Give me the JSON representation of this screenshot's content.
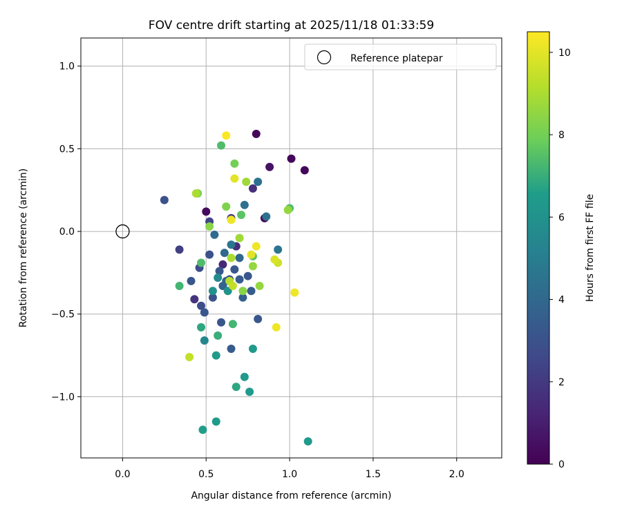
{
  "chart_data": {
    "type": "scatter",
    "title": "FOV centre drift starting at 2025/11/18 01:33:59",
    "xlabel": "Angular distance from reference (arcmin)",
    "ylabel": "Rotation from reference (arcmin)",
    "xlim": [
      -0.25,
      2.27
    ],
    "ylim": [
      -1.37,
      1.17
    ],
    "xticks": [
      0.0,
      0.5,
      1.0,
      1.5,
      2.0
    ],
    "xtick_labels": [
      "0.0",
      "0.5",
      "1.0",
      "1.5",
      "2.0"
    ],
    "yticks": [
      -1.0,
      -0.5,
      0.0,
      0.5,
      1.0
    ],
    "ytick_labels": [
      "−1.0",
      "−0.5",
      "0.0",
      "0.5",
      "1.0"
    ],
    "grid": true,
    "legend": {
      "position": "top-right",
      "entries": [
        "Reference platepar"
      ]
    },
    "reference_point": {
      "x": 0.0,
      "y": 0.0
    },
    "colorbar": {
      "label": "Hours from first FF file",
      "range": [
        0,
        10.5
      ],
      "ticks": [
        0,
        2,
        4,
        6,
        8,
        10
      ],
      "tick_labels": [
        "0",
        "2",
        "4",
        "6",
        "8",
        "10"
      ],
      "colormap": [
        "#440154",
        "#482777",
        "#3f4a8a",
        "#31678e",
        "#26838f",
        "#1f9d8a",
        "#6cce5a",
        "#b6de2b",
        "#fee825"
      ]
    },
    "points": [
      {
        "x": 0.8,
        "y": 0.59,
        "c": 0.2
      },
      {
        "x": 1.01,
        "y": 0.44,
        "c": 0.2
      },
      {
        "x": 1.09,
        "y": 0.37,
        "c": 0.2
      },
      {
        "x": 0.88,
        "y": 0.39,
        "c": 0.6
      },
      {
        "x": 0.5,
        "y": 0.12,
        "c": 0.3
      },
      {
        "x": 0.85,
        "y": 0.08,
        "c": 0.4
      },
      {
        "x": 0.78,
        "y": 0.26,
        "c": 1.6
      },
      {
        "x": 0.6,
        "y": -0.2,
        "c": 1.4
      },
      {
        "x": 0.68,
        "y": -0.09,
        "c": 1.5
      },
      {
        "x": 0.43,
        "y": -0.41,
        "c": 1.8
      },
      {
        "x": 0.34,
        "y": -0.11,
        "c": 2.2
      },
      {
        "x": 0.52,
        "y": 0.06,
        "c": 2.4
      },
      {
        "x": 0.65,
        "y": 0.08,
        "c": 2.0
      },
      {
        "x": 0.25,
        "y": 0.19,
        "c": 3.0
      },
      {
        "x": 0.46,
        "y": -0.22,
        "c": 2.8
      },
      {
        "x": 0.47,
        "y": -0.45,
        "c": 2.8
      },
      {
        "x": 0.49,
        "y": -0.49,
        "c": 3.2
      },
      {
        "x": 0.52,
        "y": -0.14,
        "c": 3.0
      },
      {
        "x": 0.41,
        "y": -0.3,
        "c": 3.2
      },
      {
        "x": 0.54,
        "y": -0.4,
        "c": 3.0
      },
      {
        "x": 0.58,
        "y": -0.24,
        "c": 3.2
      },
      {
        "x": 0.59,
        "y": -0.55,
        "c": 3.2
      },
      {
        "x": 0.65,
        "y": -0.71,
        "c": 3.4
      },
      {
        "x": 0.62,
        "y": -0.3,
        "c": 3.6
      },
      {
        "x": 0.64,
        "y": -0.29,
        "c": 3.0
      },
      {
        "x": 0.67,
        "y": -0.23,
        "c": 3.2
      },
      {
        "x": 0.7,
        "y": -0.29,
        "c": 3.4
      },
      {
        "x": 0.72,
        "y": -0.4,
        "c": 3.6
      },
      {
        "x": 0.75,
        "y": -0.27,
        "c": 3.2
      },
      {
        "x": 0.77,
        "y": -0.36,
        "c": 3.4
      },
      {
        "x": 0.81,
        "y": -0.53,
        "c": 3.2
      },
      {
        "x": 0.6,
        "y": -0.33,
        "c": 3.8
      },
      {
        "x": 0.7,
        "y": -0.16,
        "c": 4.0
      },
      {
        "x": 0.55,
        "y": -0.02,
        "c": 4.2
      },
      {
        "x": 0.61,
        "y": -0.13,
        "c": 4.0
      },
      {
        "x": 0.65,
        "y": -0.08,
        "c": 4.6
      },
      {
        "x": 0.73,
        "y": 0.16,
        "c": 4.4
      },
      {
        "x": 0.81,
        "y": 0.3,
        "c": 4.4
      },
      {
        "x": 0.86,
        "y": 0.09,
        "c": 4.4
      },
      {
        "x": 0.93,
        "y": -0.11,
        "c": 4.6
      },
      {
        "x": 0.49,
        "y": -0.66,
        "c": 5.4
      },
      {
        "x": 0.57,
        "y": -0.28,
        "c": 5.6
      },
      {
        "x": 0.54,
        "y": -0.36,
        "c": 6.0
      },
      {
        "x": 0.63,
        "y": -0.36,
        "c": 6.0
      },
      {
        "x": 0.56,
        "y": -0.75,
        "c": 6.4
      },
      {
        "x": 0.56,
        "y": -1.15,
        "c": 6.4
      },
      {
        "x": 0.48,
        "y": -1.2,
        "c": 6.6
      },
      {
        "x": 0.73,
        "y": -0.88,
        "c": 6.4
      },
      {
        "x": 0.76,
        "y": -0.97,
        "c": 6.4
      },
      {
        "x": 0.68,
        "y": -0.94,
        "c": 6.8
      },
      {
        "x": 0.78,
        "y": -0.71,
        "c": 6.4
      },
      {
        "x": 1.11,
        "y": -1.27,
        "c": 6.4
      },
      {
        "x": 0.47,
        "y": -0.58,
        "c": 6.8
      },
      {
        "x": 0.57,
        "y": -0.63,
        "c": 7.0
      },
      {
        "x": 0.66,
        "y": -0.56,
        "c": 7.2
      },
      {
        "x": 0.34,
        "y": -0.33,
        "c": 7.2
      },
      {
        "x": 0.47,
        "y": -0.19,
        "c": 7.4
      },
      {
        "x": 0.59,
        "y": 0.52,
        "c": 7.4
      },
      {
        "x": 0.71,
        "y": 0.1,
        "c": 7.6
      },
      {
        "x": 0.78,
        "y": -0.15,
        "c": 7.6
      },
      {
        "x": 1.0,
        "y": 0.14,
        "c": 7.4
      },
      {
        "x": 0.45,
        "y": 0.23,
        "c": 8.0
      },
      {
        "x": 0.67,
        "y": 0.41,
        "c": 8.0
      },
      {
        "x": 0.62,
        "y": 0.15,
        "c": 8.2
      },
      {
        "x": 0.52,
        "y": 0.03,
        "c": 8.4
      },
      {
        "x": 0.72,
        "y": -0.36,
        "c": 8.4
      },
      {
        "x": 0.78,
        "y": -0.21,
        "c": 8.6
      },
      {
        "x": 0.82,
        "y": -0.33,
        "c": 8.6
      },
      {
        "x": 0.99,
        "y": 0.13,
        "c": 8.6
      },
      {
        "x": 0.74,
        "y": 0.3,
        "c": 8.8
      },
      {
        "x": 0.7,
        "y": -0.04,
        "c": 8.8
      },
      {
        "x": 0.65,
        "y": -0.16,
        "c": 9.0
      },
      {
        "x": 0.64,
        "y": -0.3,
        "c": 9.2
      },
      {
        "x": 0.66,
        "y": -0.33,
        "c": 9.4
      },
      {
        "x": 0.4,
        "y": -0.76,
        "c": 9.4
      },
      {
        "x": 0.93,
        "y": -0.19,
        "c": 9.6
      },
      {
        "x": 0.91,
        "y": -0.17,
        "c": 9.8
      },
      {
        "x": 0.77,
        "y": -0.14,
        "c": 10.0
      },
      {
        "x": 0.8,
        "y": -0.09,
        "c": 10.2
      },
      {
        "x": 0.67,
        "y": 0.32,
        "c": 10.0
      },
      {
        "x": 0.65,
        "y": 0.07,
        "c": 10.2
      },
      {
        "x": 0.62,
        "y": 0.58,
        "c": 10.4
      },
      {
        "x": 0.92,
        "y": -0.58,
        "c": 10.2
      },
      {
        "x": 1.03,
        "y": -0.37,
        "c": 10.2
      },
      {
        "x": 0.44,
        "y": 0.23,
        "c": 9.0
      }
    ]
  }
}
